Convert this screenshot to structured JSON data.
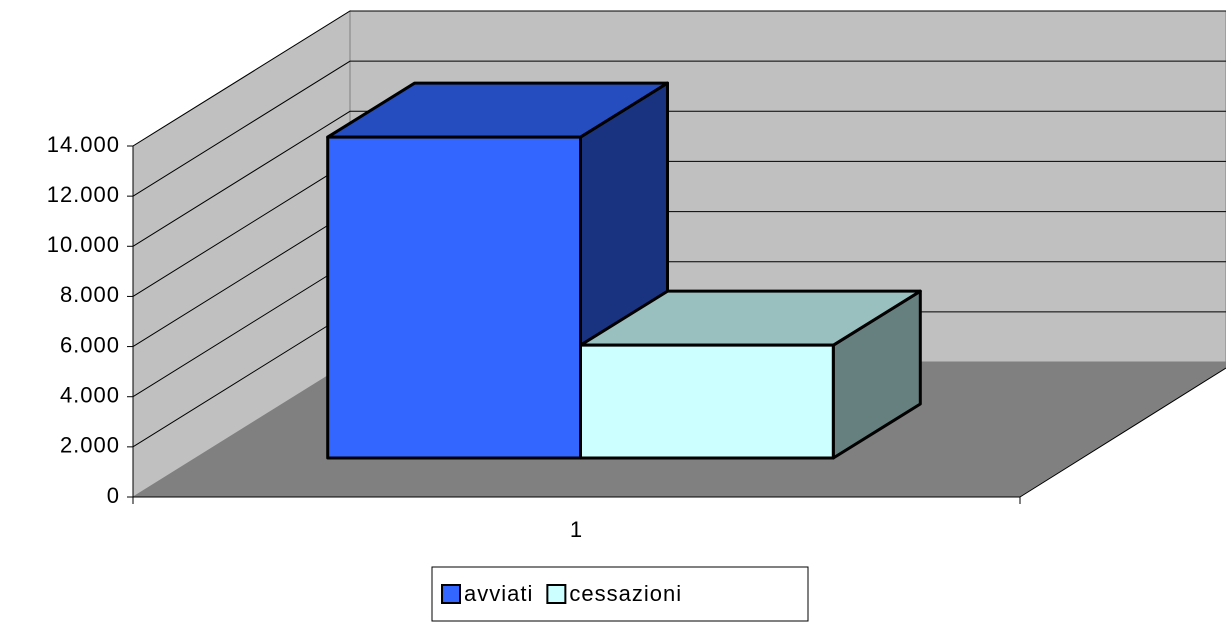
{
  "chart_data": {
    "type": "bar3d",
    "categories": [
      "1"
    ],
    "series": [
      {
        "name": "avviati",
        "color": "#3366ff",
        "values": [
          12800
        ]
      },
      {
        "name": "cessazioni",
        "color": "#ccffff",
        "values": [
          4500
        ]
      }
    ],
    "ylim": [
      0,
      14000
    ],
    "yticks": [
      0,
      {
        "value": 2000,
        "label": "2.000"
      },
      {
        "value": 4000,
        "label": "4.000"
      },
      {
        "value": 6000,
        "label": "6.000"
      },
      {
        "value": 8000,
        "label": "8.000"
      },
      {
        "value": 10000,
        "label": "10.000"
      },
      {
        "value": 12000,
        "label": "12.000"
      },
      {
        "value": 14000,
        "label": "14.000"
      }
    ],
    "grid": true,
    "legend": "bottom"
  }
}
